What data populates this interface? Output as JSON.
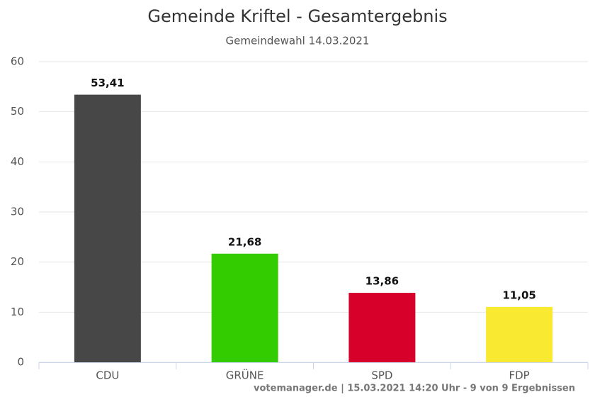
{
  "chart_data": {
    "type": "bar",
    "title": "Gemeinde Kriftel - Gesamtergebnis",
    "subtitle": "Gemeindewahl 14.03.2021",
    "categories": [
      "CDU",
      "GRÜNE",
      "SPD",
      "FDP"
    ],
    "values": [
      53.41,
      21.68,
      13.86,
      11.05
    ],
    "value_labels": [
      "53,41",
      "21,68",
      "13,86",
      "11,05"
    ],
    "colors": [
      "#474747",
      "#33cc00",
      "#d6002a",
      "#f9e931"
    ],
    "ylim": [
      0,
      60
    ],
    "yticks": [
      0,
      10,
      20,
      30,
      40,
      50,
      60
    ],
    "grid": true,
    "credit": "votemanager.de | 15.03.2021 14:20 Uhr - 9 von 9 Ergebnissen"
  }
}
